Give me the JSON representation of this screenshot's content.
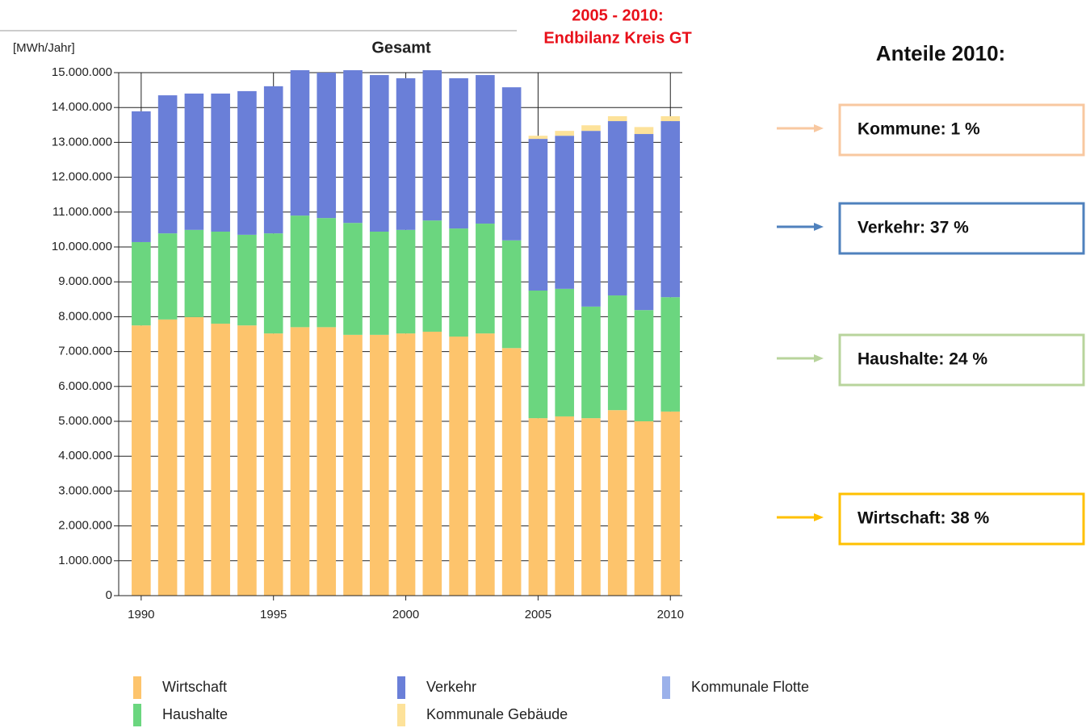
{
  "chart_data": {
    "type": "bar",
    "stacked": true,
    "title": "Gesamt",
    "y_label": "[MWh/Jahr]",
    "note": [
      "2005 - 2010:",
      "Endbilanz Kreis GT"
    ],
    "shares_title": "Anteile 2010:",
    "shares": [
      {
        "label": "Kommune: 1 %",
        "color": "#f8c8a0"
      },
      {
        "label": "Verkehr: 37 %",
        "color": "#4f81bd"
      },
      {
        "label": "Haushalte: 24 %",
        "color": "#b8d49c"
      },
      {
        "label": "Wirtschaft: 38 %",
        "color": "#ffc000"
      }
    ],
    "x": [
      1990,
      1991,
      1992,
      1993,
      1994,
      1995,
      1996,
      1997,
      1998,
      1999,
      2000,
      2001,
      2002,
      2003,
      2004,
      2005,
      2006,
      2007,
      2008,
      2009,
      2010
    ],
    "xlim": [
      1989.15,
      2010.45
    ],
    "xticks": [
      1990,
      1995,
      2000,
      2005,
      2010
    ],
    "ylim": [
      0,
      15000000
    ],
    "yticks": [
      0,
      {
        "value": 1000000,
        "label": "1.000.000"
      },
      {
        "value": 2000000,
        "label": "2.000.000"
      },
      {
        "value": 3000000,
        "label": "3.000.000"
      },
      {
        "value": 4000000,
        "label": "4.000.000"
      },
      {
        "value": 5000000,
        "label": "5.000.000"
      },
      {
        "value": 6000000,
        "label": "6.000.000"
      },
      {
        "value": 7000000,
        "label": "7.000.000"
      },
      {
        "value": 8000000,
        "label": "8.000.000"
      },
      {
        "value": 9000000,
        "label": "9.000.000"
      },
      {
        "value": 10000000,
        "label": "10.000.000"
      },
      {
        "value": 11000000,
        "label": "11.000.000"
      },
      {
        "value": 12000000,
        "label": "12.000.000"
      },
      {
        "value": 13000000,
        "label": "13.000.000"
      },
      {
        "value": 14000000,
        "label": "14.000.000"
      },
      {
        "value": 15000000,
        "label": "15.000.000"
      }
    ],
    "grid": true,
    "series": [
      {
        "name": "Wirtschaft",
        "color": "#fdc46c",
        "values": [
          7750000,
          7920000,
          7990000,
          7800000,
          7750000,
          7520000,
          7700000,
          7700000,
          7480000,
          7480000,
          7520000,
          7570000,
          7430000,
          7520000,
          7100000,
          5090000,
          5140000,
          5090000,
          5320000,
          5000000,
          5280000
        ]
      },
      {
        "name": "Haushalte",
        "color": "#6bd67f",
        "values": [
          2390000,
          2470000,
          2500000,
          2640000,
          2600000,
          2870000,
          3200000,
          3130000,
          3210000,
          2960000,
          2970000,
          3190000,
          3100000,
          3150000,
          3090000,
          3660000,
          3660000,
          3200000,
          3290000,
          3190000,
          3280000
        ]
      },
      {
        "name": "Verkehr",
        "color": "#6a7fd8",
        "values": [
          3750000,
          3960000,
          3910000,
          3960000,
          4120000,
          4220000,
          4170000,
          4170000,
          4380000,
          4490000,
          4350000,
          4310000,
          4310000,
          4260000,
          4390000,
          4350000,
          4390000,
          5040000,
          5000000,
          5050000,
          5050000
        ]
      },
      {
        "name": "Kommunale Gebäude",
        "color": "#fde29a",
        "values": [
          0,
          0,
          0,
          0,
          0,
          0,
          0,
          0,
          0,
          0,
          0,
          0,
          0,
          0,
          0,
          90000,
          140000,
          160000,
          140000,
          200000,
          140000
        ]
      },
      {
        "name": "Kommunale Flotte",
        "color": "#9bb1ea",
        "values": [
          0,
          0,
          0,
          0,
          0,
          0,
          0,
          0,
          0,
          0,
          0,
          0,
          0,
          0,
          0,
          0,
          0,
          0,
          0,
          0,
          0
        ]
      }
    ]
  }
}
